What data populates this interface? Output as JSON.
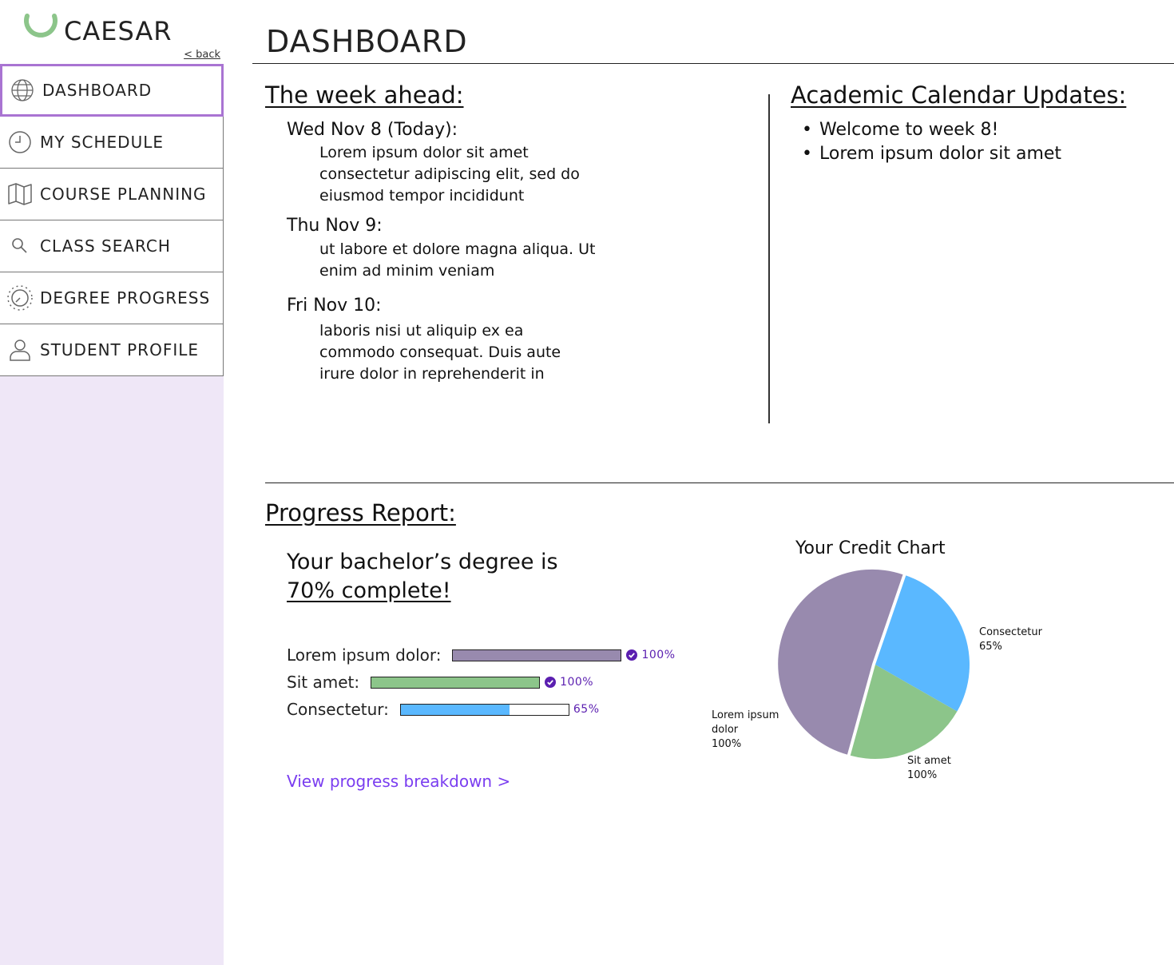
{
  "sidebar": {
    "brand": "CAESAR",
    "back": "< back",
    "items": [
      {
        "label": "DASHBOARD"
      },
      {
        "label": "MY SCHEDULE"
      },
      {
        "label": "COURSE PLANNING"
      },
      {
        "label": "CLASS SEARCH"
      },
      {
        "label": "DEGREE PROGRESS"
      },
      {
        "label": "STUDENT PROFILE"
      }
    ]
  },
  "header": {
    "title": "DASHBOARD"
  },
  "week": {
    "heading": "The week ahead:",
    "days": [
      {
        "label": "Wed Nov 8 (Today):",
        "lines": [
          "Lorem ipsum dolor sit amet",
          "consectetur adipiscing elit, sed do",
          "eiusmod tempor incididunt"
        ]
      },
      {
        "label": "Thu Nov 9:",
        "lines": [
          "ut labore et dolore magna aliqua. Ut",
          "enim ad minim veniam"
        ]
      },
      {
        "label": "Fri Nov 10:",
        "lines": [
          "laboris nisi ut aliquip ex ea",
          "commodo consequat. Duis aute",
          "irure dolor in reprehenderit in"
        ]
      }
    ]
  },
  "calendar": {
    "heading": "Academic Calendar Updates:",
    "items": [
      "Welcome to week 8!",
      "Lorem ipsum dolor sit amet"
    ]
  },
  "progress": {
    "heading": "Progress Report:",
    "degree_line1": "Your bachelor’s degree is",
    "degree_line2": "70% complete!",
    "bars": [
      {
        "label": "Lorem ipsum dolor:",
        "percent_text": "100%",
        "value": 100,
        "color": "#988aae",
        "complete": true
      },
      {
        "label": "Sit amet:",
        "percent_text": "100%",
        "value": 100,
        "color": "#8cc58a",
        "complete": true
      },
      {
        "label": "Consectetur:",
        "percent_text": "65%",
        "value": 65,
        "color": "#5ab8ff",
        "complete": false
      }
    ],
    "link": "View progress breakdown >"
  },
  "chart_data": {
    "type": "pie",
    "title": "Your Credit Chart",
    "slices": [
      {
        "name": "Consectetur",
        "pct_label": "65%",
        "value": 28,
        "color": "#5ab8ff"
      },
      {
        "name": "Sit amet",
        "pct_label": "100%",
        "value": 21,
        "color": "#8cc58a"
      },
      {
        "name": "Lorem ipsum dolor",
        "pct_label": "100%",
        "value": 51,
        "color": "#988aae"
      }
    ],
    "gap_after": "Lorem ipsum dolor"
  }
}
